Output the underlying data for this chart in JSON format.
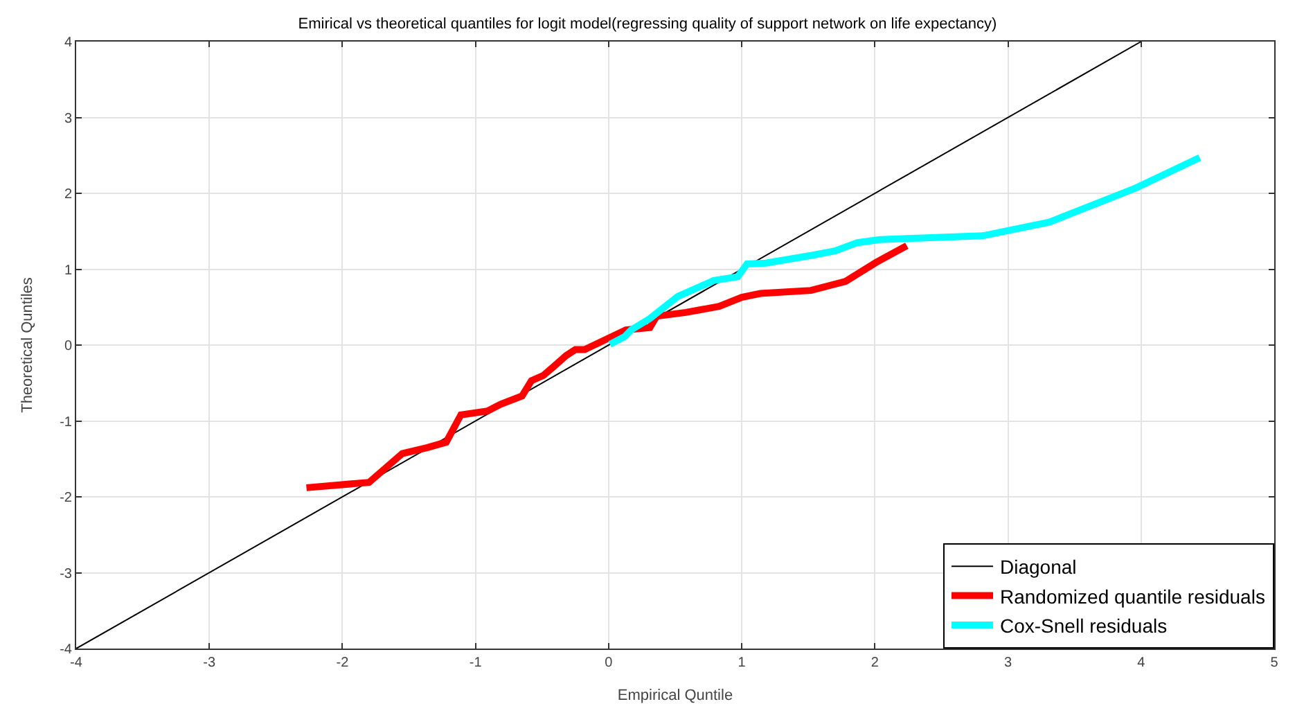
{
  "chart_data": {
    "type": "line",
    "title": "Emirical vs theoretical quantiles for logit model(regressing quality of support network on life expectancy)",
    "xlabel": "Empirical Quntile",
    "ylabel": "Theoretical Quntiles",
    "xlim": [
      -4,
      5
    ],
    "ylim": [
      -4,
      4
    ],
    "xticks": [
      -4,
      -3,
      -2,
      -1,
      0,
      1,
      2,
      3,
      4,
      5
    ],
    "yticks": [
      -4,
      -3,
      -2,
      -1,
      0,
      1,
      2,
      3,
      4
    ],
    "grid": true,
    "legend": "bottom right",
    "marker": "none",
    "line_style": "solid",
    "series": [
      {
        "name": "Diagonal",
        "color": "#000000",
        "x": [
          -4,
          4
        ],
        "values": [
          -4,
          4
        ]
      },
      {
        "name": "Randomized quantile residuals",
        "color": "#ff0000",
        "x": [
          -2.27,
          -1.8,
          -1.55,
          -1.36,
          -1.22,
          -1.11,
          -0.91,
          -0.81,
          -0.65,
          -0.58,
          -0.49,
          -0.41,
          -0.32,
          -0.25,
          -0.18,
          0.13,
          0.31,
          0.36,
          0.58,
          0.83,
          1.0,
          1.14,
          1.52,
          1.78,
          2.01,
          2.24
        ],
        "values": [
          -1.88,
          -1.81,
          -1.43,
          -1.35,
          -1.28,
          -0.92,
          -0.87,
          -0.78,
          -0.67,
          -0.47,
          -0.4,
          -0.28,
          -0.14,
          -0.06,
          -0.06,
          0.2,
          0.23,
          0.38,
          0.43,
          0.51,
          0.63,
          0.68,
          0.72,
          0.84,
          1.09,
          1.31
        ]
      },
      {
        "name": "Cox-Snell residuals",
        "color": "#00ffff",
        "x": [
          0.01,
          0.12,
          0.17,
          0.31,
          0.52,
          0.79,
          0.97,
          1.04,
          1.18,
          1.52,
          1.7,
          1.87,
          2.04,
          2.81,
          3.31,
          3.96,
          4.44
        ],
        "values": [
          0.01,
          0.11,
          0.2,
          0.35,
          0.64,
          0.85,
          0.9,
          1.07,
          1.08,
          1.18,
          1.24,
          1.35,
          1.39,
          1.44,
          1.62,
          2.07,
          2.47
        ]
      }
    ]
  }
}
